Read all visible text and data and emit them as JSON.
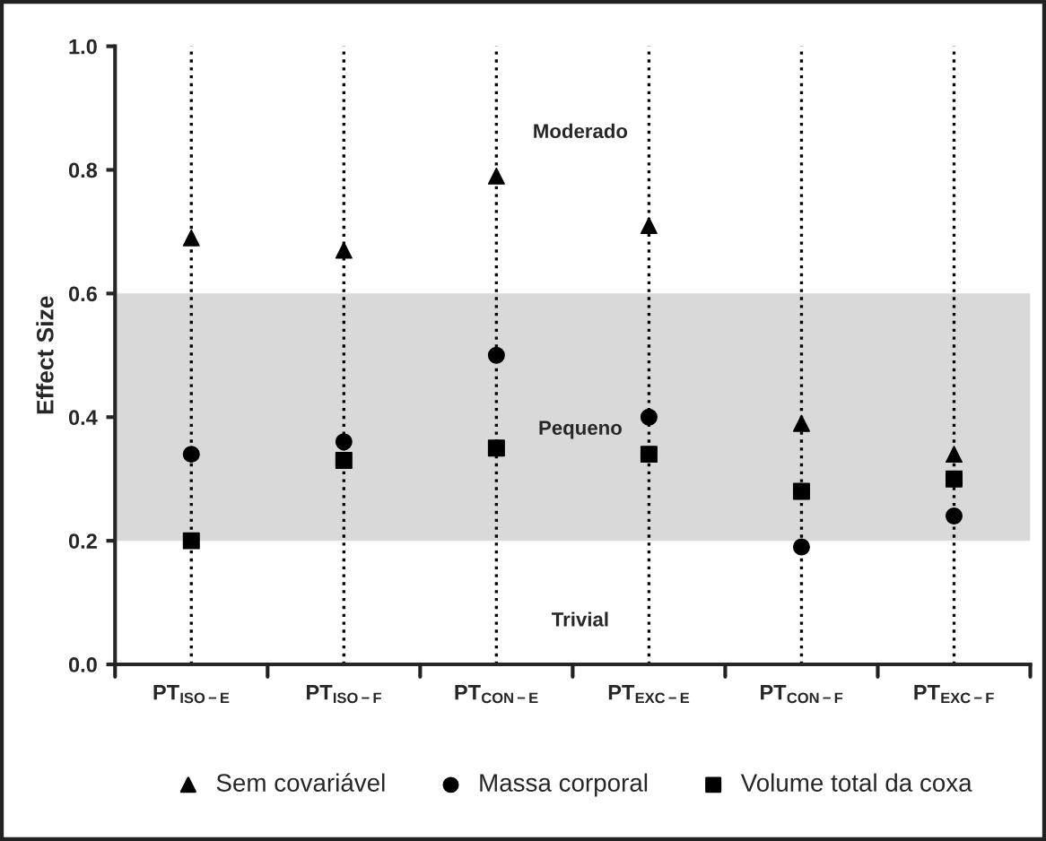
{
  "chart_data": {
    "type": "scatter",
    "ylabel": "Effect Size",
    "categories": [
      "PT$_{ISO−E}$",
      "PT$_{ISO−F}$",
      "PT$_{CON−E}$",
      "PT$_{EXC−E}$",
      "PT$_{CON−F}$",
      "PT$_{EXC−F}$"
    ],
    "series": [
      {
        "name": "Sem covariável",
        "color": "#000000",
        "marker": "triangle",
        "values": [
          0.69,
          0.67,
          0.79,
          0.71,
          0.39,
          0.34
        ]
      },
      {
        "name": "Massa corporal",
        "color": "#000000",
        "marker": "circle",
        "values": [
          0.34,
          0.36,
          0.5,
          0.4,
          0.19,
          0.24
        ]
      },
      {
        "name": "Volume total da coxa",
        "color": "#000000",
        "marker": "square",
        "values": [
          0.2,
          0.33,
          0.35,
          0.34,
          0.28,
          0.3
        ]
      }
    ],
    "ylim": [
      0,
      1.0
    ],
    "yticks": [
      {
        "value": 0,
        "label": "0.0"
      },
      0.2,
      0.4,
      0.6,
      0.8,
      {
        "value": 1.0,
        "label": "1.0"
      }
    ],
    "bands": [
      {
        "axis": "y",
        "from": 0.2,
        "to": 0.6,
        "label": "Pequeno",
        "color": "#d9d9da"
      }
    ],
    "annotations": [
      "Moderado",
      "Trivial"
    ],
    "ref_lines": [
      {
        "axis": "x",
        "value": "PT$_{ISO−E}$",
        "line_style": "dotted",
        "color": "#000000"
      },
      {
        "axis": "x",
        "value": "PT$_{ISO−F}$",
        "line_style": "dotted",
        "color": "#000000"
      },
      {
        "axis": "x",
        "value": "PT$_{CON−E}$",
        "line_style": "dotted",
        "color": "#000000"
      },
      {
        "axis": "x",
        "value": "PT$_{EXC−E}$",
        "line_style": "dotted",
        "color": "#000000"
      },
      {
        "axis": "x",
        "value": "PT$_{CON−F}$",
        "line_style": "dotted",
        "color": "#000000"
      },
      {
        "axis": "x",
        "value": "PT$_{EXC−F}$",
        "line_style": "dotted",
        "color": "#000000"
      }
    ],
    "grid": false,
    "legend": "bottom"
  }
}
